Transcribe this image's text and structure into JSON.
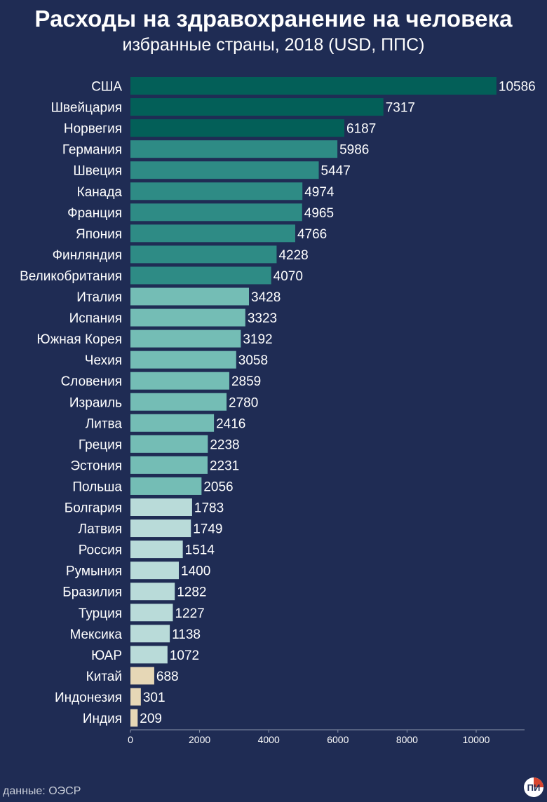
{
  "header": {
    "title": "Расходы на здравохранение на человека",
    "subtitle": "избранные страны, 2018 (USD, ППС)"
  },
  "footer": {
    "source": "данные: ОЭСР",
    "logo_text": "ПИ"
  },
  "colors": {
    "background": "#1f2c54",
    "tier1": "#035f58",
    "tier2": "#2e8b85",
    "tier3": "#74bdb5",
    "tier4": "#b9dbd9",
    "tier5": "#e6d7b6",
    "logo_accent": "#d7452f"
  },
  "chart_data": {
    "type": "bar",
    "orientation": "horizontal",
    "title": "Расходы на здравохранение на человека",
    "subtitle": "избранные страны, 2018 (USD, ППС)",
    "xlabel": "",
    "ylabel": "",
    "xlim": [
      0,
      11500
    ],
    "x_ticks": [
      0,
      2000,
      4000,
      6000,
      8000,
      10000
    ],
    "grid": false,
    "categories": [
      "США",
      "Швейцария",
      "Норвегия",
      "Германия",
      "Швеция",
      "Канада",
      "Франция",
      "Япония",
      "Финляндия",
      "Великобритания",
      "Италия",
      "Испания",
      "Южная Корея",
      "Чехия",
      "Словения",
      "Израиль",
      "Литва",
      "Греция",
      "Эстония",
      "Польша",
      "Болгария",
      "Латвия",
      "Россия",
      "Румыния",
      "Бразилия",
      "Турция",
      "Мексика",
      "ЮАР",
      "Китай",
      "Индонезия",
      "Индия"
    ],
    "values": [
      10586,
      7317,
      6187,
      5986,
      5447,
      4974,
      4965,
      4766,
      4228,
      4070,
      3428,
      3323,
      3192,
      3058,
      2859,
      2780,
      2416,
      2238,
      2231,
      2056,
      1783,
      1749,
      1514,
      1400,
      1282,
      1227,
      1138,
      1072,
      688,
      301,
      209
    ],
    "tiers": [
      1,
      1,
      1,
      2,
      2,
      2,
      2,
      2,
      2,
      2,
      3,
      3,
      3,
      3,
      3,
      3,
      3,
      3,
      3,
      3,
      4,
      4,
      4,
      4,
      4,
      4,
      4,
      4,
      5,
      5,
      5
    ]
  }
}
